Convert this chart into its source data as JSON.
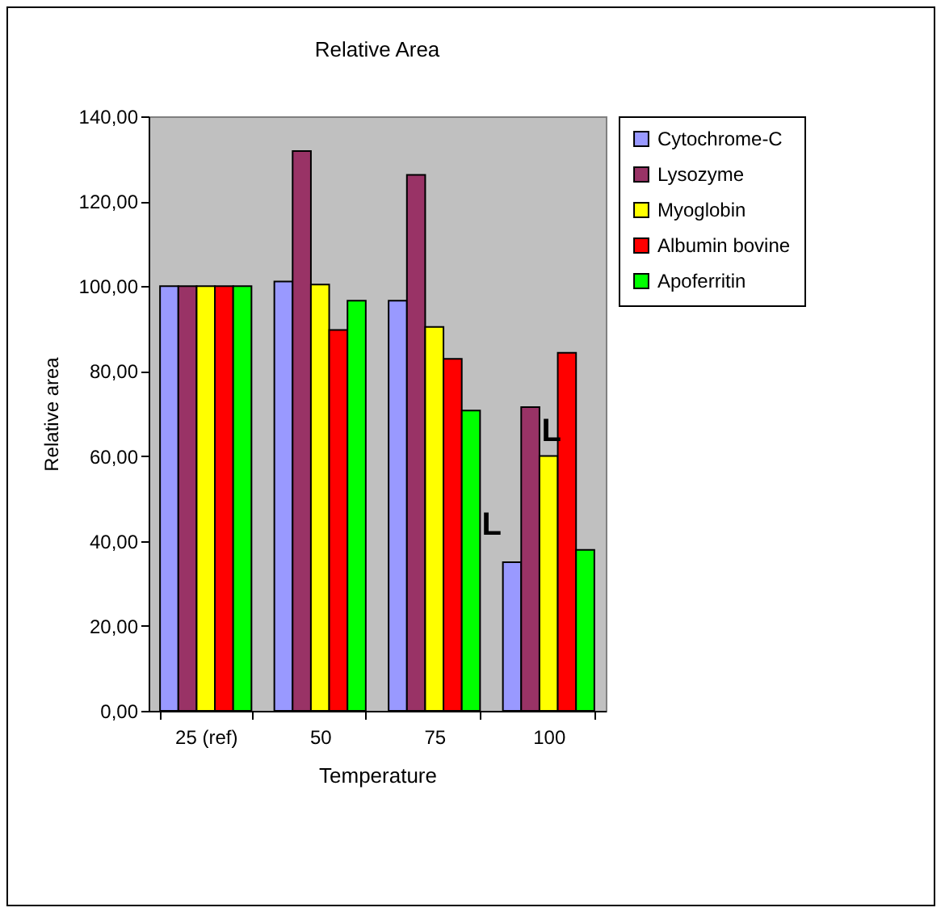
{
  "chart_data": {
    "type": "bar",
    "title": "Relative Area",
    "xlabel": "Temperature",
    "ylabel": "Relative area",
    "categories": [
      "25 (ref)",
      "50",
      "75",
      "100"
    ],
    "series": [
      {
        "name": "Cytochrome-C",
        "color": "#9999ff",
        "values": [
          100,
          101.1,
          96.6,
          35.0
        ]
      },
      {
        "name": "Lysozyme",
        "color": "#993366",
        "values": [
          100,
          131.8,
          126.2,
          71.5
        ]
      },
      {
        "name": "Myoglobin",
        "color": "#ffff00",
        "values": [
          100,
          100.4,
          90.4,
          60.0
        ]
      },
      {
        "name": "Albumin bovine",
        "color": "#ff0000",
        "values": [
          100,
          89.7,
          82.9,
          84.3
        ]
      },
      {
        "name": "Apoferritin",
        "color": "#00ff00",
        "values": [
          100,
          96.6,
          70.7,
          37.9
        ]
      }
    ],
    "ylim": [
      0,
      140
    ],
    "yticks": [
      {
        "value": 0,
        "label": "0,00"
      },
      {
        "value": 20,
        "label": "20,00"
      },
      {
        "value": 40,
        "label": "40,00"
      },
      {
        "value": 60,
        "label": "60,00"
      },
      {
        "value": 80,
        "label": "80,00"
      },
      {
        "value": 100,
        "label": "100,00"
      },
      {
        "value": 120,
        "label": "120,00"
      },
      {
        "value": 140,
        "label": "140,00"
      }
    ],
    "annotations": [
      {
        "text": "L",
        "x": "100",
        "y": 40
      },
      {
        "text": "L",
        "x": "100",
        "y": 62
      }
    ],
    "grid": false,
    "legend": "right"
  }
}
